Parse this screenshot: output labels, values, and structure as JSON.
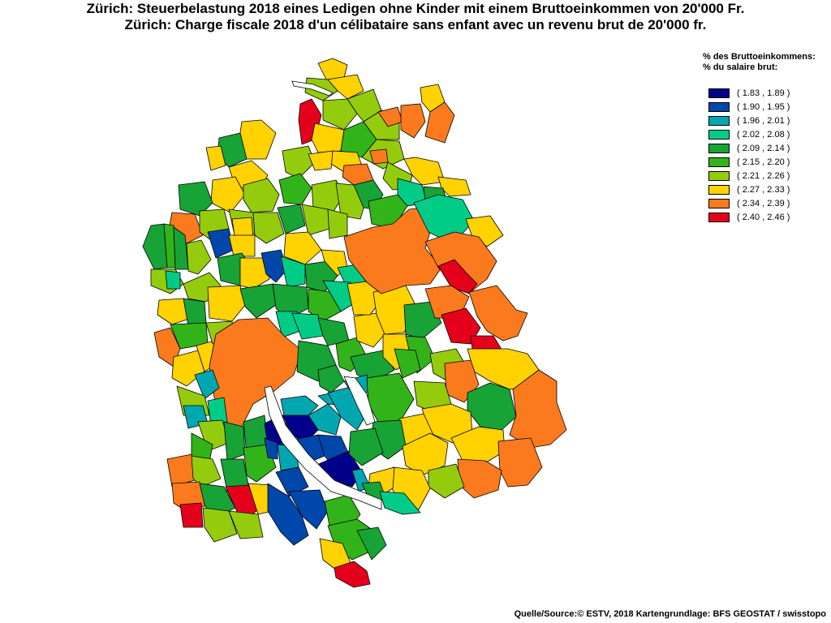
{
  "title_de": "Zürich: Steuerbelastung 2018 eines Ledigen ohne Kinder mit einem Bruttoeinkommen von 20'000 Fr.",
  "title_fr": "Zürich: Charge fiscale 2018 d'un célibataire sans enfant avec un revenu brut de 20'000 fr.",
  "legend": {
    "title_de": "% des Bruttoeinkommens:",
    "title_fr": "% du salaire brut:",
    "items": [
      {
        "label": "( 1.83 , 1.89 )",
        "color": "#00008b"
      },
      {
        "label": "( 1.90 , 1.95 )",
        "color": "#0047ab"
      },
      {
        "label": "( 1.96 , 2.01 )",
        "color": "#00a7b0"
      },
      {
        "label": "( 2.02 , 2.08 )",
        "color": "#00cc88"
      },
      {
        "label": "( 2.09 , 2.14 )",
        "color": "#17a336"
      },
      {
        "label": "( 2.15 , 2.20 )",
        "color": "#33b31a"
      },
      {
        "label": "( 2.21 , 2.26 )",
        "color": "#94cc0d"
      },
      {
        "label": "( 2.27 , 2.33 )",
        "color": "#ffd200"
      },
      {
        "label": "( 2.34 , 2.39 )",
        "color": "#fc7a1e"
      },
      {
        "label": "( 2.40 , 2.46 )",
        "color": "#e4001b"
      }
    ]
  },
  "source": "Quelle/Source:© ESTV, 2018 Kartengrundlage: BFS GEOSTAT / swisstopo"
}
